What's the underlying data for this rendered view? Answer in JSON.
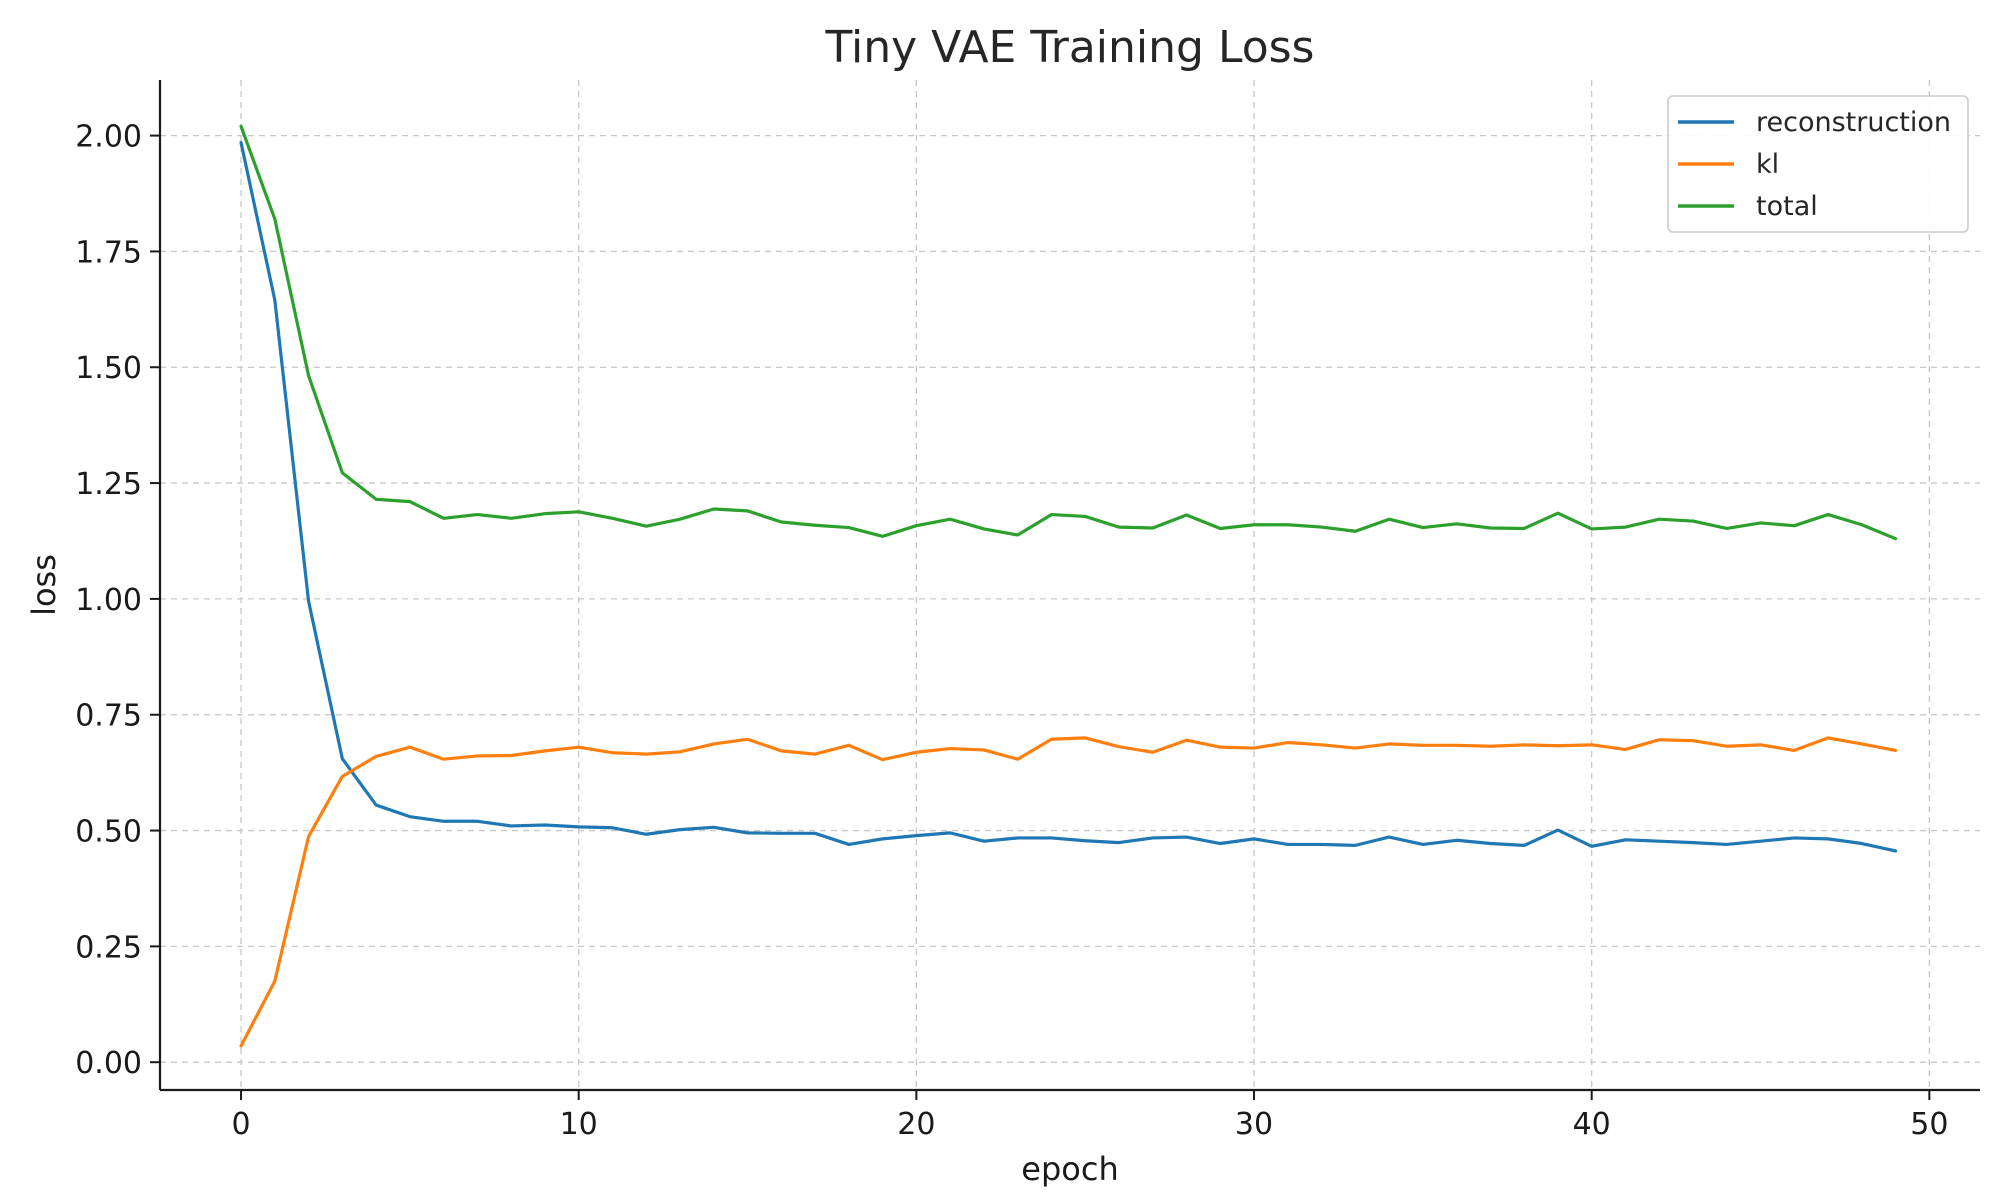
{
  "chart_data": {
    "type": "line",
    "title": "Tiny VAE Training Loss",
    "xlabel": "epoch",
    "ylabel": "loss",
    "xlim": [
      -2.4,
      51.5
    ],
    "ylim": [
      -0.06,
      2.12
    ],
    "x_ticks": [
      0,
      10,
      20,
      30,
      40,
      50
    ],
    "x_tick_labels": [
      "0",
      "10",
      "20",
      "30",
      "40",
      "50"
    ],
    "y_ticks": [
      0.0,
      0.25,
      0.5,
      0.75,
      1.0,
      1.25,
      1.5,
      1.75,
      2.0
    ],
    "y_tick_labels": [
      "0.00",
      "0.25",
      "0.50",
      "0.75",
      "1.00",
      "1.25",
      "1.50",
      "1.75",
      "2.00"
    ],
    "grid": true,
    "legend_position": "top-right",
    "x": [
      0,
      1,
      2,
      3,
      4,
      5,
      6,
      7,
      8,
      9,
      10,
      11,
      12,
      13,
      14,
      15,
      16,
      17,
      18,
      19,
      20,
      21,
      22,
      23,
      24,
      25,
      26,
      27,
      28,
      29,
      30,
      31,
      32,
      33,
      34,
      35,
      36,
      37,
      38,
      39,
      40,
      41,
      42,
      43,
      44,
      45,
      46,
      47,
      48,
      49
    ],
    "series": [
      {
        "name": "reconstruction",
        "color": "#1f77b4",
        "values": [
          1.985,
          1.645,
          0.995,
          0.655,
          0.555,
          0.53,
          0.52,
          0.52,
          0.51,
          0.512,
          0.508,
          0.506,
          0.492,
          0.502,
          0.507,
          0.495,
          0.494,
          0.494,
          0.47,
          0.482,
          0.489,
          0.495,
          0.477,
          0.484,
          0.484,
          0.478,
          0.474,
          0.484,
          0.486,
          0.472,
          0.482,
          0.47,
          0.47,
          0.468,
          0.486,
          0.47,
          0.479,
          0.472,
          0.468,
          0.501,
          0.466,
          0.48,
          0.477,
          0.474,
          0.47,
          0.477,
          0.484,
          0.482,
          0.472,
          0.456
        ]
      },
      {
        "name": "kl",
        "color": "#ff7f0e",
        "values": [
          0.035,
          0.175,
          0.487,
          0.617,
          0.66,
          0.68,
          0.654,
          0.661,
          0.662,
          0.672,
          0.68,
          0.668,
          0.665,
          0.67,
          0.687,
          0.697,
          0.672,
          0.665,
          0.684,
          0.653,
          0.669,
          0.677,
          0.674,
          0.654,
          0.697,
          0.7,
          0.681,
          0.669,
          0.695,
          0.68,
          0.678,
          0.69,
          0.685,
          0.678,
          0.687,
          0.684,
          0.684,
          0.682,
          0.685,
          0.683,
          0.685,
          0.675,
          0.696,
          0.694,
          0.682,
          0.685,
          0.673,
          0.7,
          0.687,
          0.673
        ]
      },
      {
        "name": "total",
        "color": "#2ca02c",
        "values": [
          2.02,
          1.82,
          1.482,
          1.272,
          1.215,
          1.21,
          1.174,
          1.182,
          1.174,
          1.184,
          1.188,
          1.174,
          1.157,
          1.172,
          1.194,
          1.19,
          1.166,
          1.159,
          1.154,
          1.135,
          1.158,
          1.172,
          1.151,
          1.138,
          1.182,
          1.178,
          1.155,
          1.153,
          1.181,
          1.152,
          1.16,
          1.16,
          1.155,
          1.146,
          1.172,
          1.154,
          1.162,
          1.153,
          1.152,
          1.185,
          1.151,
          1.155,
          1.172,
          1.168,
          1.152,
          1.164,
          1.158,
          1.182,
          1.16,
          1.13
        ]
      }
    ]
  }
}
